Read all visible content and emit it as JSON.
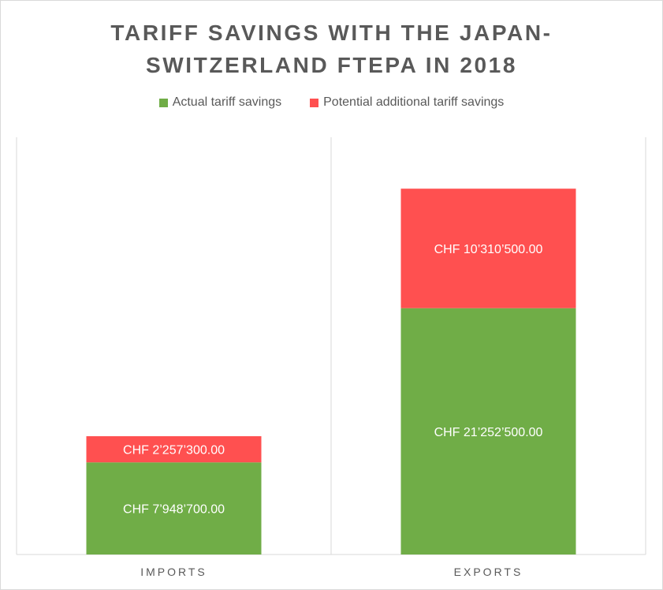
{
  "chart_data": {
    "type": "bar",
    "stacked": true,
    "title_lines": [
      "TARIFF SAVINGS WITH THE JAPAN-",
      "SWITZERLAND FTEPA IN 2018"
    ],
    "categories": [
      "IMPORTS",
      "EXPORTS"
    ],
    "series": [
      {
        "name": "Actual tariff savings",
        "color": "#70ad47",
        "values": [
          7948700,
          21252500
        ],
        "labels": [
          "CHF 7’948’700.00",
          "CHF 21’252’500.00"
        ]
      },
      {
        "name": "Potential additional tariff savings",
        "color": "#ff5050",
        "values": [
          2257300,
          10310500
        ],
        "labels": [
          "CHF 2’257’300.00",
          "CHF 10’310’500.00"
        ]
      }
    ],
    "ylim": [
      0,
      36000000
    ],
    "legend_position": "top",
    "grid": false
  }
}
